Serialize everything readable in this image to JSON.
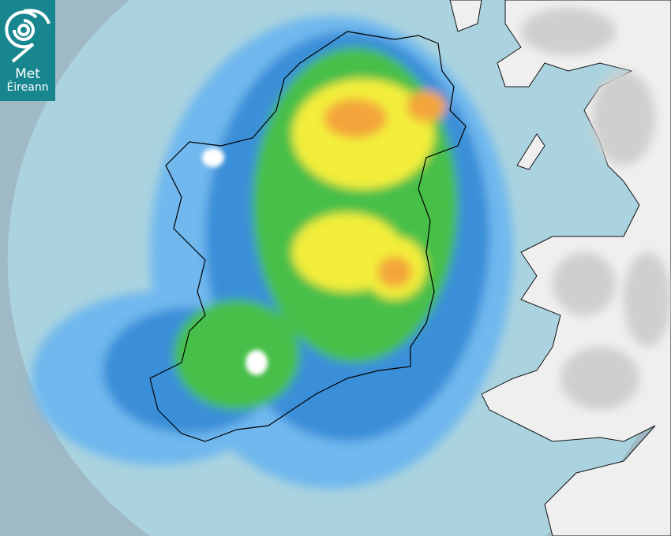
{
  "logo": {
    "line1": "Met",
    "line2": "Éireann"
  },
  "map": {
    "type": "weather-radar",
    "colors": {
      "outside_coverage": "#9fb9c5",
      "sea": "#aad3df",
      "land": "#eeeeee",
      "rain_light": "#6fb8ee",
      "rain_moderate": "#3a8fd8",
      "rain_green": "#47bf4a",
      "rain_yellow": "#f3ee3a",
      "rain_orange": "#f3a53a"
    }
  }
}
